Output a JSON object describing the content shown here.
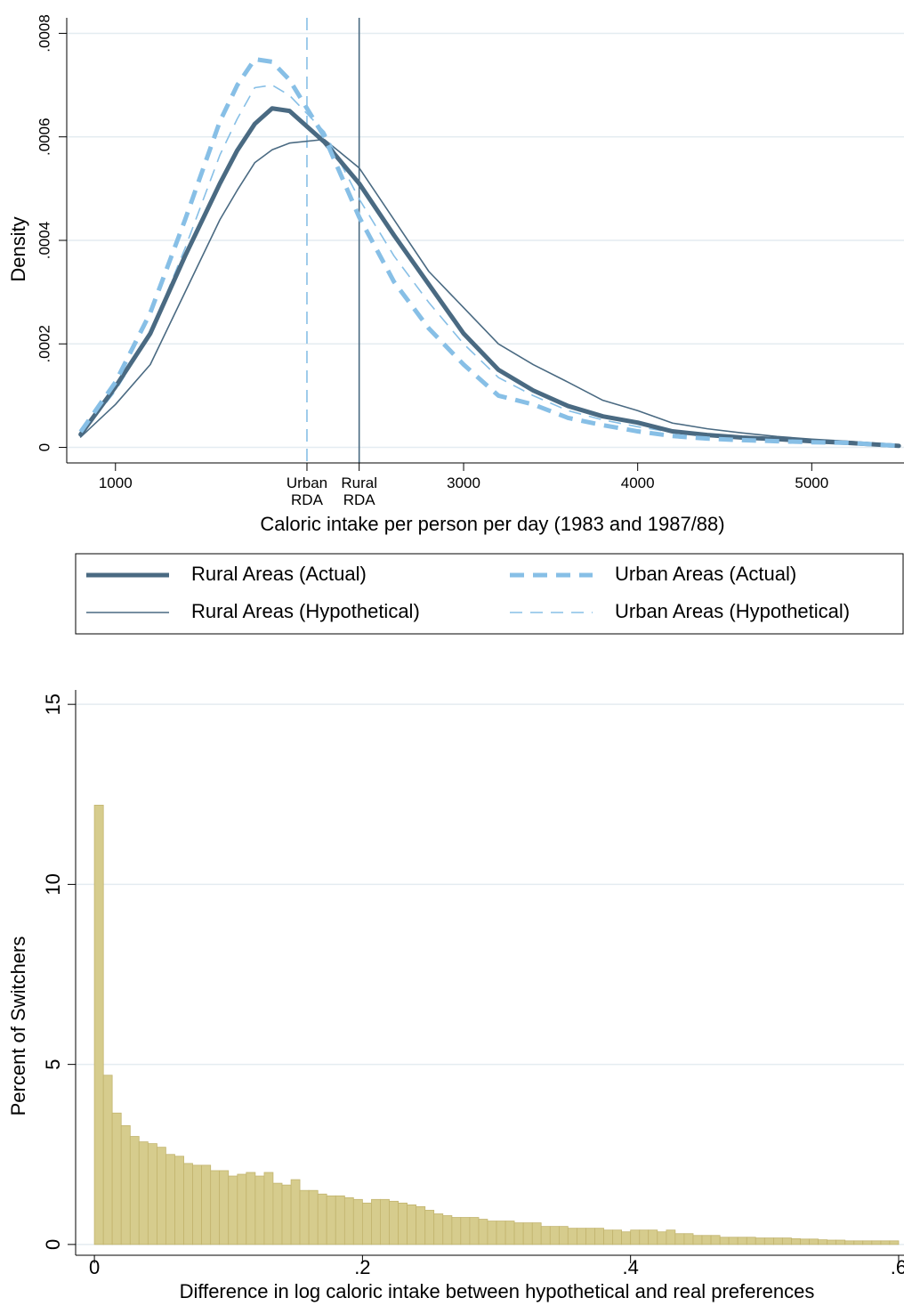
{
  "chart_data": [
    {
      "type": "line",
      "x_label": "Caloric intake per person per day (1983 and 1987/88)",
      "y_label": "Density",
      "x": [
        800,
        1000,
        1200,
        1400,
        1600,
        1700,
        1800,
        1900,
        2000,
        2200,
        2400,
        2600,
        2800,
        3000,
        3200,
        3400,
        3600,
        3800,
        4000,
        4200,
        4400,
        4600,
        4800,
        5000,
        5200,
        5500
      ],
      "series": [
        {
          "name": "Rural Areas (Actual)",
          "color": "#4a6a82",
          "line_width": 5,
          "dash": false,
          "values": [
            2.5e-05,
            0.000117,
            0.00022,
            0.00037,
            0.00051,
            0.000574,
            0.000625,
            0.000655,
            0.00065,
            0.00059,
            0.00051,
            0.00041,
            0.000315,
            0.00022,
            0.00015,
            0.00011,
            8e-05,
            6e-05,
            4.8e-05,
            3.1e-05,
            2.4e-05,
            1.9e-05,
            1.6e-05,
            1.2e-05,
            9e-06,
            3e-06
          ]
        },
        {
          "name": "Urban Areas (Actual)",
          "color": "#87bfe6",
          "line_width": 5,
          "dash": true,
          "values": [
            3e-05,
            0.000126,
            0.00026,
            0.00044,
            0.00063,
            0.0007,
            0.00075,
            0.000745,
            0.00071,
            0.0006,
            0.000445,
            0.00032,
            0.00023,
            0.00016,
            0.0001,
            8.3e-05,
            5.7e-05,
            4.3e-05,
            3.1e-05,
            2.2e-05,
            1.7e-05,
            1.4e-05,
            1.2e-05,
            1e-05,
            9e-06,
            3e-06
          ]
        },
        {
          "name": "Rural Areas (Hypothetical)",
          "color": "#4a6a82",
          "line_width": 1.6,
          "dash": false,
          "values": [
            2e-05,
            8.3e-05,
            0.00016,
            0.0003,
            0.00044,
            0.000497,
            0.00055,
            0.000575,
            0.000588,
            0.000595,
            0.00054,
            0.00044,
            0.00034,
            0.00027,
            0.0002,
            0.00016,
            0.000126,
            9.1e-05,
            7.1e-05,
            4.7e-05,
            3.6e-05,
            2.8e-05,
            2.1e-05,
            1.6e-05,
            1.2e-05,
            5e-06
          ]
        },
        {
          "name": "Urban Areas (Hypothetical)",
          "color": "#87bfe6",
          "line_width": 1.6,
          "dash": true,
          "values": [
            2.5e-05,
            0.000109,
            0.00022,
            0.000385,
            0.000565,
            0.000635,
            0.000695,
            0.0007,
            0.00068,
            0.00061,
            0.00048,
            0.00037,
            0.00028,
            0.0002,
            0.000135,
            0.0001,
            7.1e-05,
            5.3e-05,
            4e-05,
            2.9e-05,
            2.2e-05,
            1.7e-05,
            1.4e-05,
            1.2e-05,
            9e-06,
            3e-06
          ]
        }
      ],
      "vlines": [
        {
          "x": 2100,
          "color": "#87bfe6",
          "dash": true
        },
        {
          "x": 2400,
          "color": "#4a6a82",
          "dash": false
        }
      ],
      "xlim": [
        720,
        5530
      ],
      "xticks": [
        1000,
        {
          "value": 2100,
          "label": "Urban RDA"
        },
        {
          "value": 2400,
          "label": "Rural RDA"
        },
        3000,
        4000,
        5000
      ],
      "ylim": [
        -3e-05,
        0.00083
      ],
      "yticks": [
        0,
        {
          "value": 0.0002,
          "label": ".0002"
        },
        {
          "value": 0.0004,
          "label": ".0004"
        },
        {
          "value": 0.0006,
          "label": ".0006"
        },
        {
          "value": 0.0008,
          "label": ".0008"
        }
      ],
      "grid": true,
      "legend": "bottom"
    },
    {
      "type": "histogram",
      "x_label": "Difference in log caloric intake between hypothetical and real preferences",
      "y_label": "Percent of Switchers",
      "color": "#d6cc8d",
      "bins": [
        0,
        0.0067,
        0.0133,
        0.02,
        0.0267,
        0.0333,
        0.04,
        0.0467,
        0.0533,
        0.06,
        0.0667,
        0.0733,
        0.08,
        0.0867,
        0.0933,
        0.1,
        0.1067,
        0.1133,
        0.12,
        0.1267,
        0.1333,
        0.14,
        0.1467,
        0.1533,
        0.16,
        0.1667,
        0.1733,
        0.18,
        0.1867,
        0.1933,
        0.2,
        0.2067,
        0.2133,
        0.22,
        0.2267,
        0.2333,
        0.24,
        0.2467,
        0.2533,
        0.26,
        0.2667,
        0.2733,
        0.28,
        0.2867,
        0.2933,
        0.3,
        0.3067,
        0.3133,
        0.32,
        0.3267,
        0.3333,
        0.34,
        0.3467,
        0.3533,
        0.36,
        0.3667,
        0.3733,
        0.38,
        0.3867,
        0.3933,
        0.4,
        0.4067,
        0.4133,
        0.42,
        0.4267,
        0.4333,
        0.44,
        0.4467,
        0.4533,
        0.46,
        0.4667,
        0.4733,
        0.48,
        0.4867,
        0.4933,
        0.5,
        0.5067,
        0.5133,
        0.52,
        0.5267,
        0.5333,
        0.54,
        0.5467,
        0.5533,
        0.56,
        0.5667,
        0.5733,
        0.58,
        0.5867,
        0.5933,
        0.6
      ],
      "values": [
        12.2,
        4.7,
        3.65,
        3.3,
        3.0,
        2.85,
        2.8,
        2.7,
        2.5,
        2.45,
        2.25,
        2.2,
        2.2,
        2.05,
        2.05,
        1.9,
        1.95,
        2.0,
        1.9,
        2.0,
        1.7,
        1.65,
        1.8,
        1.5,
        1.5,
        1.4,
        1.35,
        1.35,
        1.3,
        1.25,
        1.15,
        1.25,
        1.25,
        1.2,
        1.15,
        1.1,
        1.05,
        0.95,
        0.85,
        0.8,
        0.75,
        0.75,
        0.75,
        0.7,
        0.65,
        0.65,
        0.65,
        0.6,
        0.6,
        0.6,
        0.5,
        0.5,
        0.5,
        0.45,
        0.45,
        0.45,
        0.45,
        0.4,
        0.4,
        0.35,
        0.4,
        0.4,
        0.4,
        0.35,
        0.4,
        0.3,
        0.3,
        0.25,
        0.25,
        0.25,
        0.2,
        0.2,
        0.2,
        0.2,
        0.18,
        0.18,
        0.18,
        0.18,
        0.16,
        0.15,
        0.15,
        0.13,
        0.12,
        0.12,
        0.1,
        0.1,
        0.1,
        0.1,
        0.1,
        0.1
      ],
      "xlim": [
        -0.014,
        0.604
      ],
      "xticks": [
        0,
        {
          "value": 0.2,
          "label": ".2"
        },
        {
          "value": 0.4,
          "label": ".4"
        },
        {
          "value": 0.6,
          "label": ".6"
        }
      ],
      "ylim": [
        -0.3,
        15.4
      ],
      "yticks": [
        0,
        5,
        10,
        15
      ],
      "grid": true
    }
  ]
}
